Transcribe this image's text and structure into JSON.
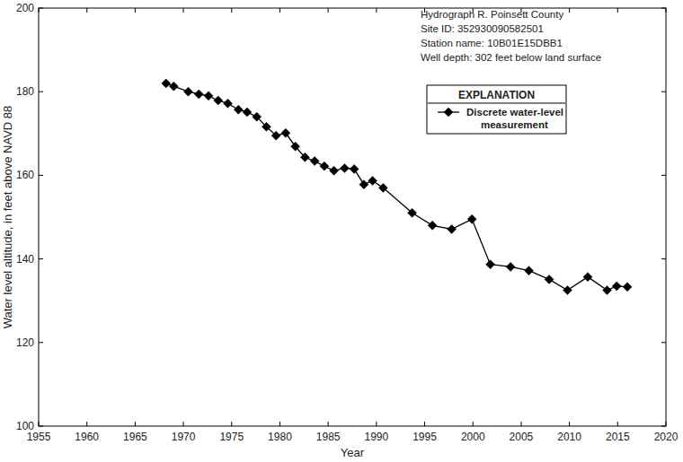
{
  "chart_data": {
    "type": "line",
    "x_label": "Year",
    "y_label": "Water level altitude, in feet above NAVD 88",
    "annotations": [
      "Hydrograph R. Poinsett County",
      "Site ID: 352930090582501",
      "Station name: 10B01E15DBB1",
      "Well depth: 302 feet below land surface"
    ],
    "legend_title": "EXPLANATION",
    "legend": "upper right",
    "grid": false,
    "x": [
      1968.2,
      1969.0,
      1970.5,
      1971.6,
      1972.6,
      1973.6,
      1974.6,
      1975.7,
      1976.6,
      1977.6,
      1978.6,
      1979.6,
      1980.6,
      1981.6,
      1982.6,
      1983.6,
      1984.6,
      1985.6,
      1986.7,
      1987.7,
      1988.7,
      1989.6,
      1990.7,
      1993.7,
      1995.8,
      1997.8,
      1999.9,
      2001.8,
      2003.9,
      2005.8,
      2007.9,
      2009.8,
      2011.9,
      2013.9,
      2014.9,
      2016.0
    ],
    "series": [
      {
        "name": "Discrete water-level measurement",
        "color": "#000000",
        "marker": "diamond",
        "line_style": "solid",
        "values": [
          182.0,
          181.3,
          180.0,
          179.4,
          179.0,
          177.9,
          177.2,
          175.7,
          175.1,
          174.0,
          171.6,
          169.5,
          170.1,
          166.9,
          164.3,
          163.4,
          162.2,
          161.1,
          161.7,
          161.5,
          157.8,
          158.7,
          157.0,
          151.0,
          148.0,
          147.1,
          149.5,
          138.7,
          138.1,
          137.2,
          135.1,
          132.5,
          135.7,
          132.5,
          133.5,
          133.3
        ]
      }
    ],
    "xlim": [
      1955,
      2020
    ],
    "xticks": [
      1955,
      1960,
      1965,
      1970,
      1975,
      1980,
      1985,
      1990,
      1995,
      2000,
      2005,
      2010,
      2015,
      2020
    ],
    "ylim": [
      100,
      200
    ],
    "yticks": [
      100,
      120,
      140,
      160,
      180,
      200
    ]
  }
}
